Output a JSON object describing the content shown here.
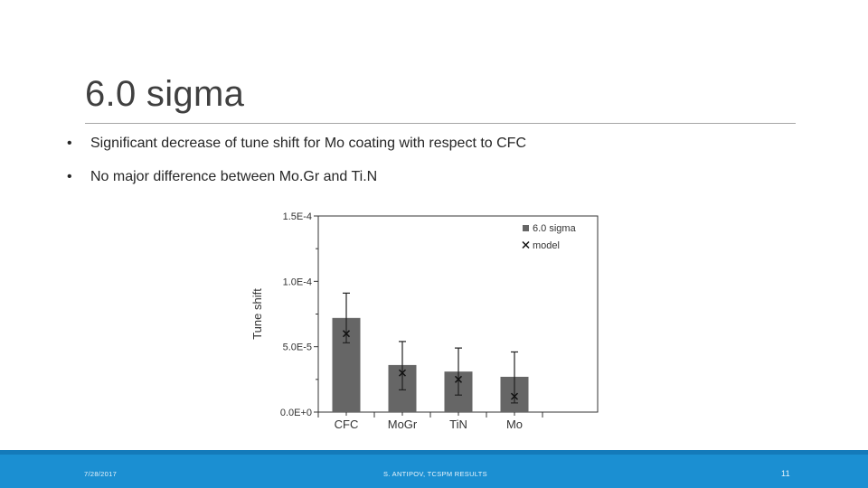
{
  "slide": {
    "title": "6.0 sigma",
    "bullets": [
      "Significant decrease of tune shift for Mo coating with respect to CFC",
      "No major difference between Mo.Gr and Ti.N"
    ],
    "bullet_symbol": "•"
  },
  "footer": {
    "date": "7/28/2017",
    "center": "S. ANTIPOV, TCSPM RESULTS",
    "page": "11",
    "bar_color": "#1b8fd2"
  },
  "chart_data": {
    "type": "bar",
    "categories": [
      "CFC",
      "MoGr",
      "TiN",
      "Mo"
    ],
    "series": [
      {
        "name": "6.0 sigma",
        "type": "bar",
        "values": [
          7.2e-05,
          3.6e-05,
          3.1e-05,
          2.7e-05
        ],
        "error_low": [
          5.3e-05,
          1.7e-05,
          1.3e-05,
          7e-06
        ],
        "error_high": [
          9.1e-05,
          5.4e-05,
          4.9e-05,
          4.6e-05
        ],
        "color": "#666666"
      },
      {
        "name": "model",
        "type": "marker",
        "marker": "x",
        "values": [
          6e-05,
          3e-05,
          2.5e-05,
          1.2e-05
        ]
      }
    ],
    "yticks": [
      "0.0E+0",
      "5.0E-5",
      "1.0E-4",
      "1.5E-4"
    ],
    "ytick_values": [
      0,
      5e-05,
      0.0001,
      0.00015
    ],
    "ylabel": "Tune shift",
    "xlabel": "",
    "ylim": [
      0,
      0.00015
    ],
    "legend_position": "top-right",
    "grid": false
  }
}
